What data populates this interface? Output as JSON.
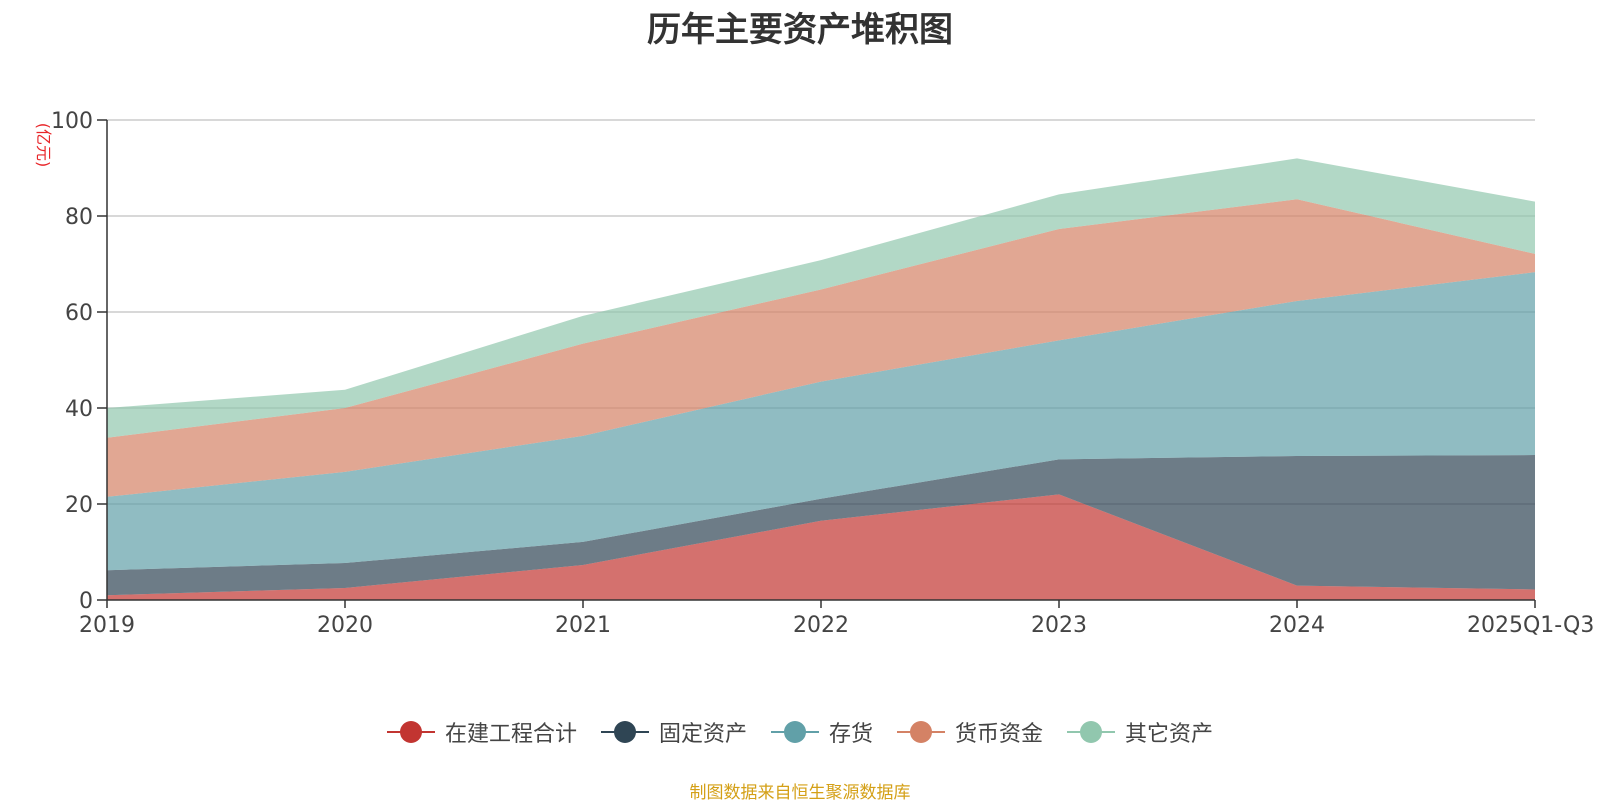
{
  "chart_data": {
    "type": "area",
    "stacked": true,
    "title": "历年主要资产堆积图",
    "ylabel": "(亿元)",
    "xlabel": "",
    "ylim": [
      0,
      100
    ],
    "yticks": [
      0,
      20,
      40,
      60,
      80,
      100
    ],
    "grid": true,
    "legend_position": "bottom",
    "categories": [
      "2019",
      "2020",
      "2021",
      "2022",
      "2023",
      "2024",
      "2025Q1-Q3"
    ],
    "series": [
      {
        "name": "在建工程合计",
        "color": "#c23531",
        "values": [
          1.0,
          2.5,
          7.3,
          16.5,
          22.0,
          3.0,
          2.2
        ]
      },
      {
        "name": "固定资产",
        "color": "#2f4554",
        "values": [
          5.2,
          5.2,
          4.8,
          4.6,
          7.3,
          27.0,
          28.0
        ]
      },
      {
        "name": "存货",
        "color": "#61a0a8",
        "values": [
          15.3,
          19.0,
          22.1,
          24.4,
          24.8,
          32.3,
          38.1
        ]
      },
      {
        "name": "货币资金",
        "color": "#d48265",
        "values": [
          12.3,
          13.3,
          19.2,
          19.2,
          23.2,
          21.2,
          3.8
        ]
      },
      {
        "name": "其它资产",
        "color": "#91c7ae",
        "values": [
          6.2,
          3.8,
          5.8,
          6.1,
          7.2,
          8.5,
          10.9
        ]
      }
    ]
  },
  "footer": {
    "source": "制图数据来自恒生聚源数据库"
  }
}
